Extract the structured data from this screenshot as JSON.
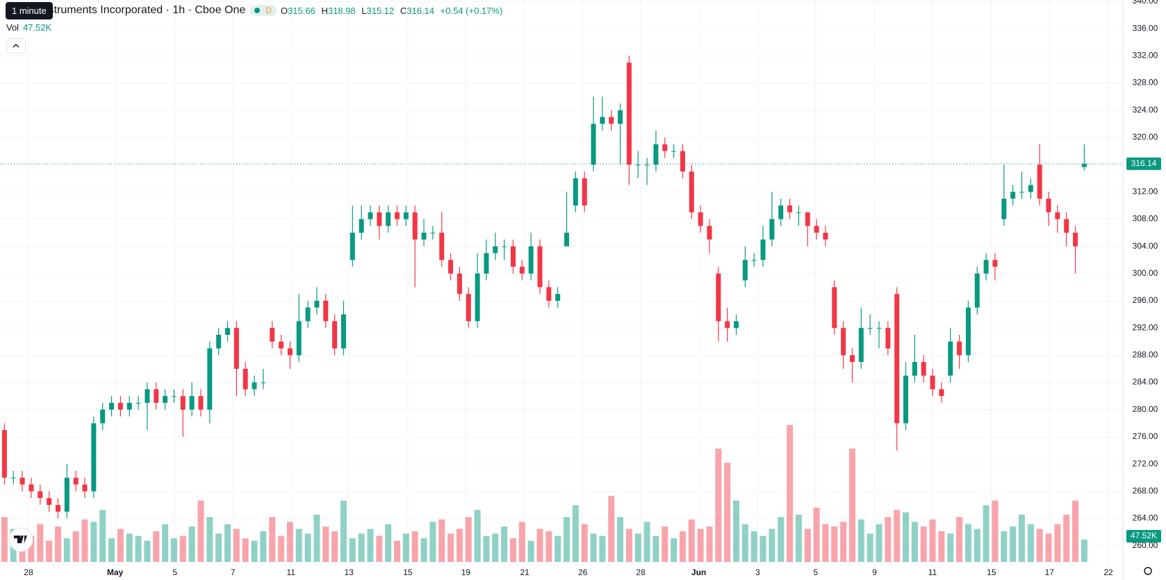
{
  "header": {
    "tooltip": "1 minute",
    "title": "Texas Instruments Incorporated · 1h · Cboe One",
    "badge": "D",
    "ohlc": [
      {
        "key": "O",
        "value": "315.66"
      },
      {
        "key": "H",
        "value": "318.98"
      },
      {
        "key": "L",
        "value": "315.12"
      },
      {
        "key": "C",
        "value": "316.14"
      }
    ],
    "change": "+0.54 (+0.17%)"
  },
  "volume_legend": {
    "label": "Vol",
    "value": "47.52K"
  },
  "chart_data": {
    "type": "candlestick",
    "open": [
      277,
      270,
      270,
      269,
      268,
      267,
      266,
      265,
      270,
      269,
      268,
      278,
      280,
      281,
      280,
      281,
      281,
      283,
      281,
      282,
      282,
      280,
      282,
      280,
      289,
      291,
      292,
      286,
      283,
      284,
      292,
      290,
      289,
      288,
      293,
      295,
      296,
      293,
      289,
      302,
      306,
      308,
      309,
      307,
      309,
      308,
      309,
      305,
      306,
      306,
      302,
      300,
      297,
      293,
      300,
      303,
      304,
      304,
      301,
      300,
      304,
      298,
      296,
      304,
      310,
      314,
      316,
      322,
      323,
      322,
      331,
      316,
      316,
      316,
      319,
      318,
      318,
      315,
      309,
      307,
      300,
      293,
      292,
      299,
      302,
      302,
      305,
      308,
      310,
      309,
      309,
      307,
      306,
      298,
      292,
      288,
      287,
      292,
      292,
      292,
      297,
      278,
      285,
      287,
      285,
      283,
      285,
      290,
      288,
      295,
      300,
      302,
      308,
      311,
      312,
      312,
      316,
      311,
      309,
      308,
      306,
      315.66
    ],
    "high": [
      278,
      271,
      271,
      270,
      269,
      268,
      267,
      272,
      271,
      270,
      279,
      281,
      282,
      282,
      282,
      282,
      284,
      284,
      283,
      283,
      283,
      284,
      283,
      290,
      292,
      293,
      293,
      287,
      285,
      286,
      293,
      291,
      290,
      297,
      296,
      298,
      297,
      294,
      296,
      310,
      310,
      310,
      310,
      310,
      310,
      310,
      310,
      308,
      307,
      309,
      303,
      301,
      298,
      303,
      305,
      306,
      305,
      305,
      302,
      306,
      305,
      299,
      298,
      312,
      315,
      315,
      326,
      326,
      324,
      325,
      332,
      318,
      317,
      321,
      320,
      319,
      319,
      316,
      310,
      308,
      301,
      295,
      294,
      304,
      303,
      307,
      312,
      311,
      311,
      310,
      309,
      308,
      307,
      299,
      293,
      289,
      295,
      294,
      293,
      293,
      298,
      287,
      291,
      288,
      286,
      284,
      292,
      291,
      296,
      301,
      303,
      303,
      316,
      313,
      315,
      314,
      319,
      312,
      310,
      309,
      307,
      318.98
    ],
    "low": [
      269,
      269,
      268,
      267,
      266,
      265,
      264,
      264,
      268,
      267,
      267,
      277,
      279,
      279,
      279,
      280,
      277,
      280,
      280,
      281,
      276,
      279,
      279,
      278,
      288,
      290,
      282,
      282,
      282,
      283,
      289,
      288,
      286,
      287,
      292,
      294,
      292,
      288,
      288,
      301,
      305,
      307,
      305,
      306,
      307,
      307,
      298,
      304,
      305,
      301,
      299,
      296,
      292,
      292,
      299,
      302,
      302,
      300,
      299,
      299,
      297,
      295,
      295,
      304,
      309,
      309,
      315,
      321,
      321,
      316,
      313,
      314,
      313,
      315,
      317,
      317,
      314,
      308,
      306,
      303,
      290,
      290,
      291,
      298,
      301,
      301,
      304,
      307,
      308,
      307,
      304,
      305,
      304,
      291,
      286,
      284,
      286,
      291,
      289,
      288,
      274,
      277,
      284,
      284,
      282,
      281,
      284,
      286,
      287,
      294,
      299,
      299,
      307,
      310,
      311,
      311,
      310,
      307,
      306,
      304,
      300,
      315.12
    ],
    "close": [
      270,
      270,
      269,
      268,
      267,
      266,
      265,
      270,
      269,
      268,
      278,
      280,
      281,
      280,
      281,
      281,
      283,
      281,
      282,
      282,
      280,
      282,
      280,
      289,
      291,
      292,
      286,
      283,
      284,
      284,
      290,
      289,
      288,
      293,
      295,
      296,
      293,
      289,
      294,
      306,
      308,
      309,
      307,
      309,
      308,
      309,
      305,
      306,
      306,
      302,
      300,
      297,
      293,
      300,
      303,
      304,
      304,
      301,
      300,
      304,
      298,
      296,
      297,
      306,
      314,
      310,
      322,
      323,
      322,
      324,
      316,
      316,
      316,
      319,
      318,
      318,
      315,
      309,
      307,
      305,
      293,
      292,
      293,
      302,
      302,
      305,
      308,
      310,
      309,
      309,
      307,
      306,
      305,
      292,
      288,
      287,
      292,
      292,
      292,
      289,
      278,
      285,
      287,
      285,
      283,
      282,
      290,
      288,
      295,
      300,
      302,
      301,
      311,
      312,
      312,
      313,
      311,
      309,
      308,
      306,
      304,
      316.14
    ],
    "volume": [
      95,
      70,
      60,
      55,
      80,
      45,
      75,
      50,
      65,
      90,
      85,
      110,
      50,
      70,
      60,
      55,
      45,
      65,
      80,
      50,
      55,
      75,
      130,
      95,
      60,
      80,
      70,
      50,
      45,
      65,
      95,
      55,
      85,
      70,
      60,
      100,
      75,
      65,
      130,
      50,
      60,
      70,
      55,
      80,
      45,
      60,
      65,
      50,
      85,
      90,
      60,
      70,
      95,
      110,
      55,
      60,
      75,
      50,
      85,
      45,
      70,
      65,
      55,
      95,
      120,
      80,
      60,
      55,
      140,
      95,
      70,
      60,
      85,
      55,
      75,
      50,
      65,
      90,
      70,
      75,
      240,
      210,
      130,
      80,
      65,
      55,
      70,
      95,
      290,
      100,
      70,
      115,
      80,
      75,
      85,
      240,
      90,
      60,
      80,
      95,
      110,
      105,
      85,
      75,
      90,
      65,
      60,
      95,
      80,
      70,
      120,
      130,
      65,
      75,
      100,
      80,
      70,
      60,
      80,
      100,
      130,
      47.52
    ],
    "up_color": "#089981",
    "down_color": "#f23645",
    "ylim": [
      256.7,
      340.2
    ],
    "yticks": [
      {
        "value": 260,
        "label": "260.00"
      },
      {
        "value": 264,
        "label": "264.00"
      },
      {
        "value": 268,
        "label": "268.00"
      },
      {
        "value": 272,
        "label": "272.00"
      },
      {
        "value": 276,
        "label": "276.00"
      },
      {
        "value": 280,
        "label": "280.00"
      },
      {
        "value": 284,
        "label": "284.00"
      },
      {
        "value": 288,
        "label": "288.00"
      },
      {
        "value": 292,
        "label": "292.00"
      },
      {
        "value": 296,
        "label": "296.00"
      },
      {
        "value": 300,
        "label": "300.00"
      },
      {
        "value": 304,
        "label": "304.00"
      },
      {
        "value": 308,
        "label": "308.00"
      },
      {
        "value": 312,
        "label": "312.00"
      },
      {
        "value": 316,
        "label": "316.00"
      },
      {
        "value": 320,
        "label": "320.00"
      },
      {
        "value": 324,
        "label": "324.00"
      },
      {
        "value": 328,
        "label": "328.00"
      },
      {
        "value": 332,
        "label": "332.00"
      },
      {
        "value": 336,
        "label": "336.00"
      },
      {
        "value": 340,
        "label": "340.00"
      }
    ],
    "xlim": [
      -0.5,
      125.33
    ],
    "xticks": [
      {
        "value": 2.7,
        "label": "28"
      },
      {
        "value": 12.4,
        "label": "May"
      },
      {
        "value": 19.1,
        "label": "5"
      },
      {
        "value": 25.6,
        "label": "7"
      },
      {
        "value": 32.1,
        "label": "11"
      },
      {
        "value": 38.6,
        "label": "13"
      },
      {
        "value": 45.2,
        "label": "15"
      },
      {
        "value": 51.7,
        "label": "19"
      },
      {
        "value": 58.3,
        "label": "21"
      },
      {
        "value": 64.8,
        "label": "26"
      },
      {
        "value": 71.3,
        "label": "28"
      },
      {
        "value": 77.8,
        "label": "Jun"
      },
      {
        "value": 84.4,
        "label": "3"
      },
      {
        "value": 90.9,
        "label": "5"
      },
      {
        "value": 97.5,
        "label": "9"
      },
      {
        "value": 104,
        "label": "11"
      },
      {
        "value": 110.6,
        "label": "15"
      },
      {
        "value": 117.1,
        "label": "17"
      },
      {
        "value": 123.7,
        "label": "22"
      }
    ],
    "last_price": {
      "value": 316.14,
      "label": "316.14"
    },
    "last_volume_label": "47.52K",
    "grid": true
  }
}
